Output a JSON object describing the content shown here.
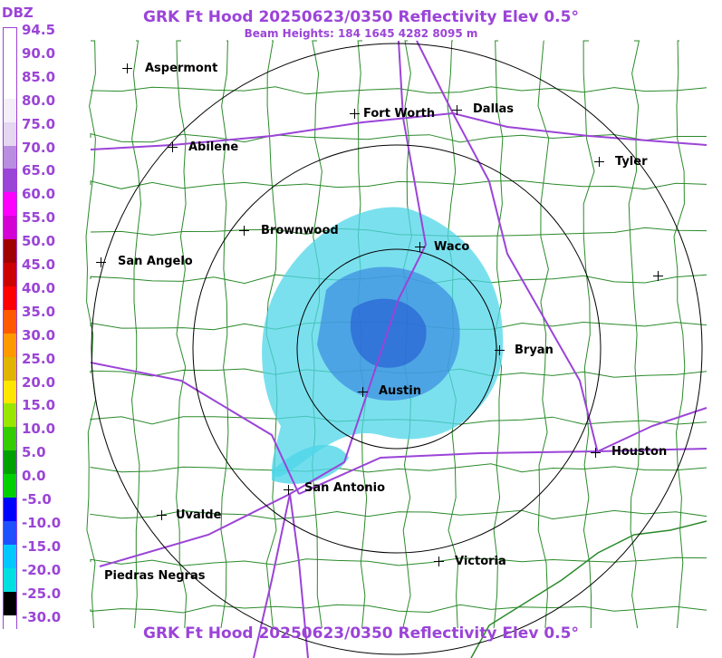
{
  "header": {
    "title": "GRK Ft Hood 20250623/0350 Reflectivity Elev 0.5°",
    "subtitle": "Beam Heights: 184 1645 4282 8095 m",
    "footer": "GRK Ft Hood 20250623/0350 Reflectivity Elev 0.5°"
  },
  "legend": {
    "unit": "DBZ",
    "levels": [
      "94.5",
      "90.0",
      "85.0",
      "80.0",
      "75.0",
      "70.0",
      "65.0",
      "60.0",
      "55.0",
      "50.0",
      "45.0",
      "40.0",
      "35.0",
      "30.0",
      "25.0",
      "20.0",
      "15.0",
      "10.0",
      "5.0",
      "0.0",
      "-5.0",
      "-10.0",
      "-15.0",
      "-20.0",
      "-25.0",
      "-30.0"
    ],
    "colors": [
      "#ffffff",
      "#ffffff",
      "#ffffff",
      "#f4eef9",
      "#e5d7f2",
      "#b98ee0",
      "#9b44d8",
      "#ff00ff",
      "#d400d4",
      "#a00000",
      "#cc0000",
      "#ff0000",
      "#ff5a00",
      "#ff9900",
      "#e0b400",
      "#ffe600",
      "#99e600",
      "#33cc00",
      "#00a000",
      "#00d000",
      "#0000ff",
      "#1e50ff",
      "#00c8ff",
      "#00e0e0",
      "#000000",
      "#ffffff"
    ]
  },
  "cities": [
    {
      "name": "Aspermont"
    },
    {
      "name": "Fort Worth"
    },
    {
      "name": "Dallas"
    },
    {
      "name": "Abilene"
    },
    {
      "name": "Tyler"
    },
    {
      "name": "Brownwood"
    },
    {
      "name": "Waco"
    },
    {
      "name": "San Angelo"
    },
    {
      "name": "Bryan"
    },
    {
      "name": "Austin"
    },
    {
      "name": "Houston"
    },
    {
      "name": "San Antonio"
    },
    {
      "name": "Uvalde"
    },
    {
      "name": "Victoria"
    },
    {
      "name": "Piedras Negras"
    }
  ],
  "map_colors": {
    "county_lines": "#2a8a2a",
    "highways": "#9b44d8",
    "range_rings": "#000000",
    "echo_light": "#4fd6e8",
    "echo_mid": "#3a8ae0",
    "echo_dark": "#1e50d0"
  }
}
